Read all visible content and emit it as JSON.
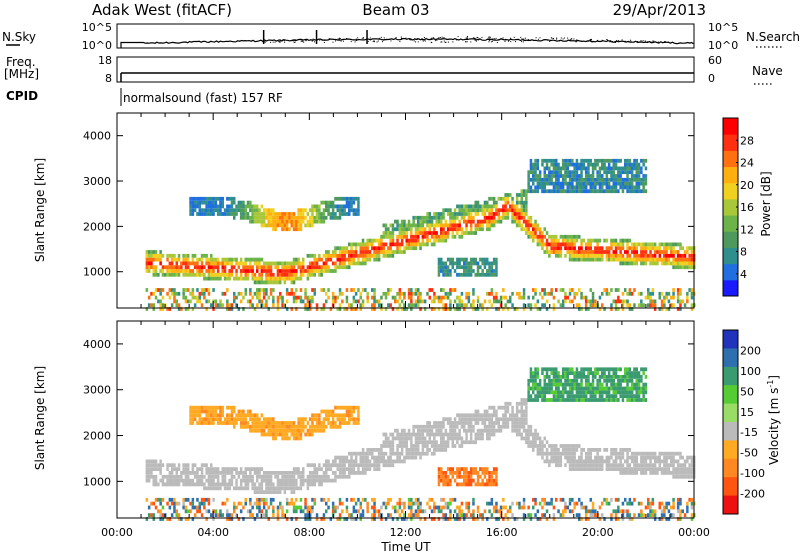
{
  "header": {
    "station": "Adak West (fitACF)",
    "beam": "Beam 03",
    "date": "29/Apr/2013"
  },
  "chart_data": [
    {
      "type": "line",
      "panel": "nsky",
      "ylabel": "N.Sky",
      "right_label": "N.Search",
      "yticks_left": [
        "10^5",
        "10^0"
      ],
      "yticks_right": [
        "10^5",
        "10^0"
      ]
    },
    {
      "type": "line",
      "panel": "freq",
      "ylabel": [
        "Freq.",
        "[MHz]"
      ],
      "right_label": "Nave",
      "yticks_left": [
        "18",
        "8"
      ],
      "yticks_right": [
        "60",
        "0"
      ]
    },
    {
      "type": "table",
      "panel": "cpid",
      "label": "CPID",
      "program": "normalsound (fast) 157 RF",
      "start_hour": 1.1
    },
    {
      "type": "heatmap",
      "panel": "power",
      "ylabel": "Slant Range [km]",
      "xlim": [
        0,
        24
      ],
      "ylim": [
        200,
        4500
      ],
      "yticks": [
        1000,
        2000,
        3000,
        4000
      ],
      "colorbar": {
        "label": "Power [dB]",
        "range": [
          0,
          32
        ],
        "ticks": [
          4,
          8,
          12,
          16,
          20,
          24,
          28
        ],
        "colors": [
          "#1a1aff",
          "#1f6fe0",
          "#2f8f8f",
          "#4e9a5e",
          "#6cb34a",
          "#a8c83a",
          "#f0d020",
          "#ffb010",
          "#ff7010",
          "#ff3010",
          "#ff0000"
        ]
      }
    },
    {
      "type": "heatmap",
      "panel": "velocity",
      "ylabel": "Slant Range [km]",
      "xlabel": "Time UT",
      "xlim": [
        0,
        24
      ],
      "ylim": [
        200,
        4500
      ],
      "yticks": [
        1000,
        2000,
        3000,
        4000
      ],
      "xticks": [
        "00:00",
        "04:00",
        "08:00",
        "12:00",
        "16:00",
        "20:00",
        "00:00"
      ],
      "colorbar": {
        "label": "Velocity [m s^-1]",
        "ticks": [
          "200",
          "100",
          "50",
          "15",
          "-15",
          "-50",
          "-100",
          "-200"
        ],
        "colors": [
          "#2233bb",
          "#2e6fb0",
          "#3a9a70",
          "#55cc33",
          "#99dd66",
          "#bbbbbb",
          "#ffaa22",
          "#ff8822",
          "#ff5511",
          "#ee1111"
        ]
      }
    }
  ]
}
